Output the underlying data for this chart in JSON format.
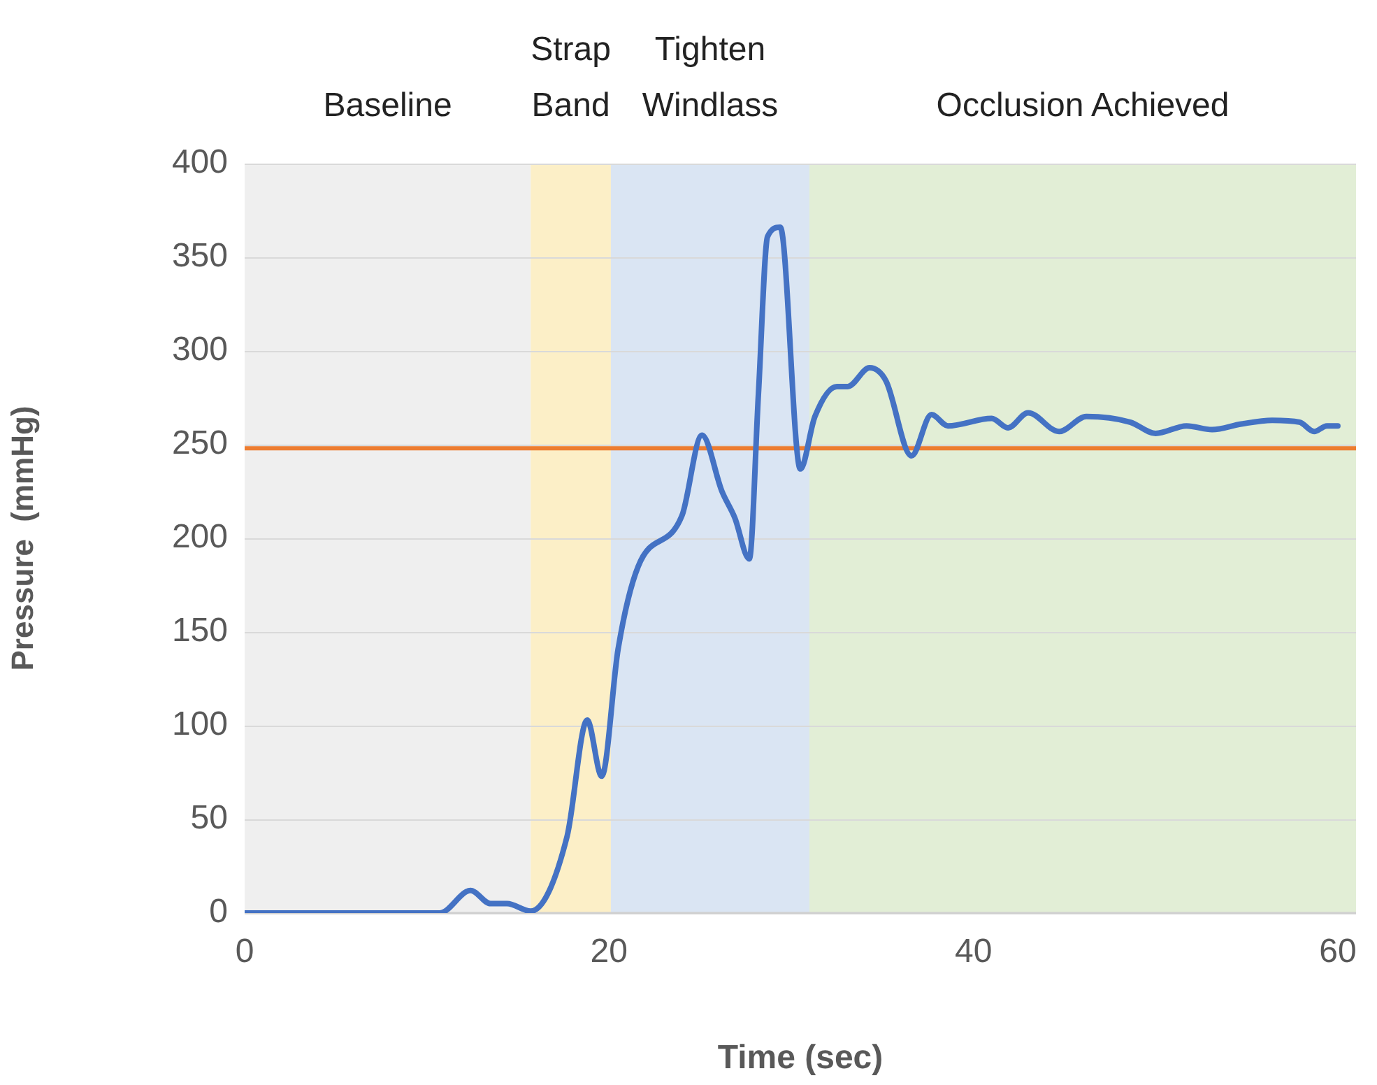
{
  "chart_data": {
    "type": "line",
    "xlabel": "Time (sec)",
    "ylabel": "Pressure  (mmHg)",
    "x": [
      0,
      5,
      10.7,
      12.4,
      13.5,
      14.4,
      15.7,
      17.7,
      18.8,
      19.6,
      20.5,
      21.6,
      24.0,
      25.1,
      26.2,
      26.9,
      27.7,
      28.2,
      28.7,
      29.4,
      30.5,
      31.3,
      32.5,
      33.1,
      34.3,
      35.2,
      36.6,
      37.7,
      38.6,
      41.0,
      41.9,
      43.0,
      44.7,
      46.2,
      48.6,
      50.0,
      51.7,
      53.1,
      54.7,
      56.4,
      57.9,
      58.7,
      59.4,
      60
    ],
    "series": [
      {
        "color": "#4472c4",
        "values": [
          0,
          0,
          0,
          12,
          5,
          5,
          1,
          41,
          103,
          73,
          141,
          185,
          212,
          255,
          225,
          211,
          189,
          277,
          361,
          366,
          237,
          265,
          281,
          281,
          291,
          284,
          244,
          266,
          260,
          264,
          259,
          267,
          257,
          265,
          262,
          256,
          260,
          258,
          261,
          263,
          262,
          257,
          260,
          260
        ]
      }
    ],
    "xlim": [
      0,
      61
    ],
    "xticks": [
      0,
      20,
      40,
      60
    ],
    "ylim": [
      0,
      400
    ],
    "yticks": [
      0,
      50,
      100,
      150,
      200,
      250,
      300,
      350,
      400
    ],
    "grid": "y",
    "legend": false,
    "marker": "none",
    "line_style": "solid",
    "ref_lines": [
      {
        "axis": "y",
        "value": 248,
        "color": "#ed7d31"
      }
    ],
    "bands": [
      {
        "axis": "x",
        "from": 0,
        "to": 15.7,
        "label": "Baseline",
        "color": "#efefef"
      },
      {
        "axis": "x",
        "from": 15.7,
        "to": 20.1,
        "label": "Strap Band",
        "color": "#fcefc7"
      },
      {
        "axis": "x",
        "from": 20.1,
        "to": 31.0,
        "label": "Tighten Windlass",
        "color": "#dae5f3"
      },
      {
        "axis": "x",
        "from": 31.0,
        "to": 61,
        "label": "Occlusion Achieved",
        "color": "#e2eed6"
      }
    ]
  }
}
